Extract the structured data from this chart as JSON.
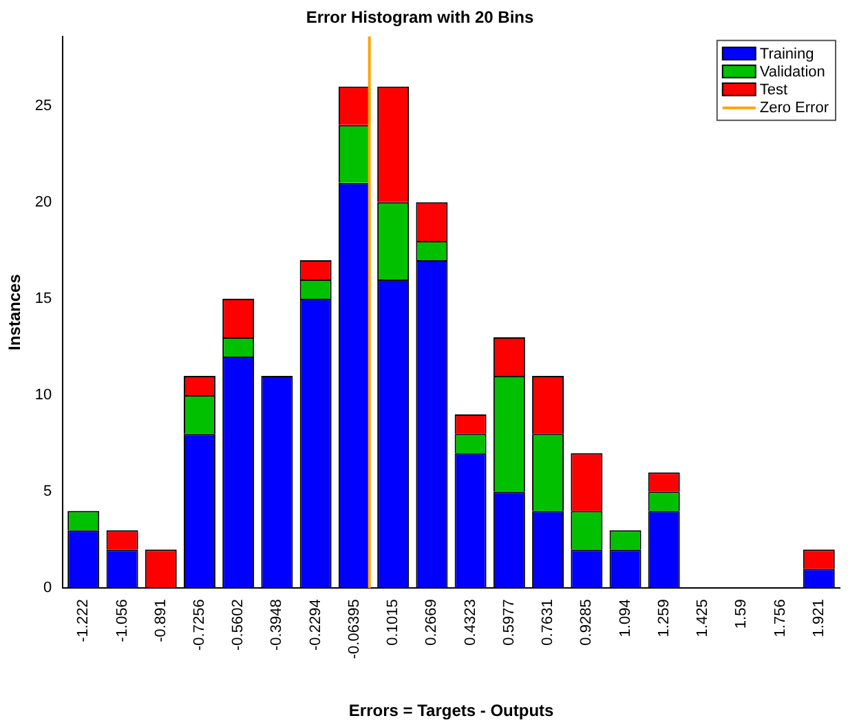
{
  "chart_data": {
    "type": "bar",
    "title": "Error Histogram with 20 Bins",
    "xlabel": "Errors = Targets - Outputs",
    "ylabel": "Instances",
    "stacked": true,
    "x": [
      -1.222,
      -1.056,
      -0.891,
      -0.7256,
      -0.5602,
      -0.3948,
      -0.2294,
      -0.06395,
      0.1015,
      0.2669,
      0.4323,
      0.5977,
      0.7631,
      0.9285,
      1.094,
      1.259,
      1.425,
      1.59,
      1.756,
      1.921
    ],
    "xlim": [
      -1.31,
      2.01
    ],
    "xticks": [
      -1.222,
      -1.056,
      -0.891,
      -0.7256,
      -0.5602,
      -0.3948,
      -0.2294,
      -0.06395,
      0.1015,
      0.2669,
      0.4323,
      0.5977,
      0.7631,
      0.9285,
      1.094,
      1.259,
      1.425,
      1.59,
      1.756,
      1.921
    ],
    "ylim": [
      0,
      28.6
    ],
    "yticks": [
      0,
      5,
      10,
      15,
      20,
      25
    ],
    "series": [
      {
        "name": "Training",
        "color": "#0000ff",
        "values": [
          3,
          2,
          0,
          8,
          12,
          11,
          15,
          21,
          16,
          17,
          7,
          5,
          4,
          2,
          2,
          4,
          0,
          0,
          0,
          1
        ]
      },
      {
        "name": "Validation",
        "color": "#00c000",
        "values": [
          1,
          0,
          0,
          2,
          1,
          0,
          1,
          3,
          4,
          1,
          1,
          6,
          4,
          2,
          1,
          1,
          0,
          0,
          0,
          0
        ]
      },
      {
        "name": "Test",
        "color": "#ff0000",
        "values": [
          0,
          1,
          2,
          1,
          2,
          0,
          1,
          2,
          6,
          2,
          1,
          2,
          3,
          3,
          0,
          1,
          0,
          0,
          0,
          1
        ]
      },
      {
        "name": "Zero Error",
        "type": "line",
        "color": "#ffa500",
        "x": [
          0,
          0
        ],
        "values": [
          0,
          28.6
        ]
      }
    ],
    "legend": "top right"
  }
}
